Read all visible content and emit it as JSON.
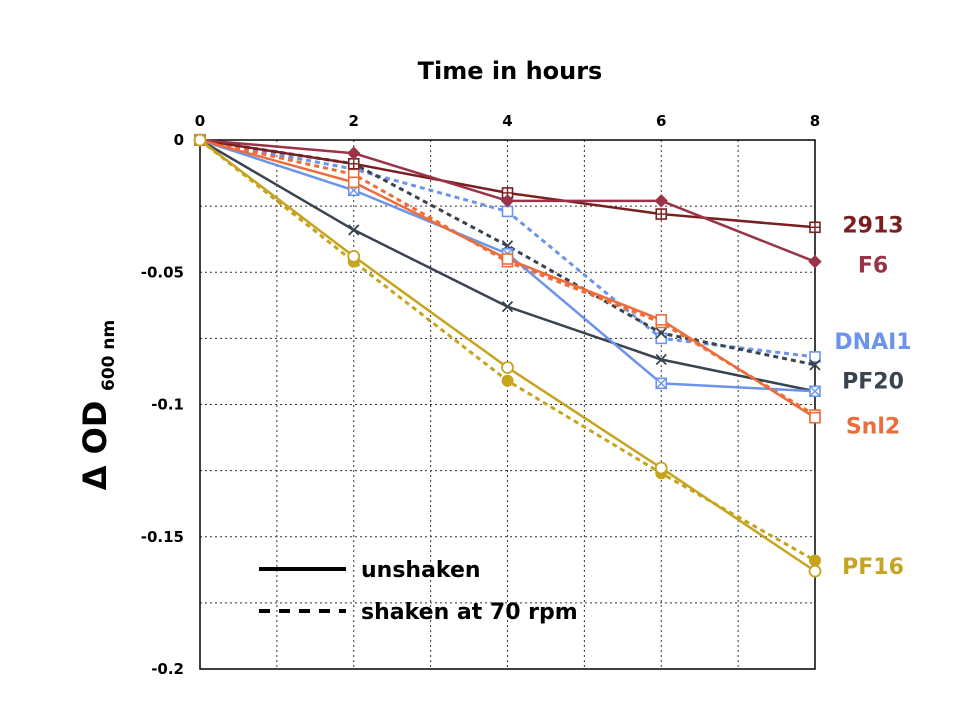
{
  "chart_data": {
    "type": "line",
    "title": "",
    "xlabel": "Time in hours",
    "ylabel_main": "Δ OD",
    "ylabel_sub": "600 nm",
    "x": [
      0,
      2,
      4,
      6,
      8
    ],
    "xlim": [
      0,
      8
    ],
    "ylim": [
      -0.2,
      0
    ],
    "x_ticks": [
      "0",
      "2",
      "4",
      "6",
      "8"
    ],
    "y_ticks": [
      {
        "value": 0,
        "label": "0"
      },
      {
        "value": -0.05,
        "label": "-0.05"
      },
      {
        "value": -0.1,
        "label": "-0.1"
      },
      {
        "value": -0.15,
        "label": "-0.15"
      },
      {
        "value": -0.2,
        "label": "-0.2"
      }
    ],
    "grid": true,
    "x_axis_position": "top",
    "legend": {
      "placement": "bottom-left",
      "entries": [
        {
          "label": "unshaken",
          "style": "solid"
        },
        {
          "label": "shaken at 70 rpm",
          "style": "dashed"
        }
      ]
    },
    "series": [
      {
        "name": "2913",
        "color": "#7a1f1f",
        "style": "solid",
        "marker": "square-plus",
        "values": [
          0,
          -0.009,
          -0.02,
          -0.028,
          -0.033
        ]
      },
      {
        "name": "F6",
        "color": "#9a3347",
        "style": "solid",
        "marker": "diamond",
        "values": [
          0,
          -0.005,
          -0.023,
          -0.023,
          -0.046
        ]
      },
      {
        "name": "",
        "color": "#3a4450",
        "style": "solid",
        "marker": "x",
        "values": [
          0,
          -0.034,
          -0.063,
          -0.083,
          -0.095
        ]
      },
      {
        "name": "",
        "color": "#6b94ea",
        "style": "solid",
        "marker": "square-x",
        "values": [
          0,
          -0.019,
          -0.043,
          -0.092,
          -0.095
        ]
      },
      {
        "name": "",
        "color": "#ee6c3a",
        "style": "solid",
        "marker": "square",
        "values": [
          0,
          -0.016,
          -0.045,
          -0.068,
          -0.105
        ]
      },
      {
        "name": "PF16",
        "color": "#c6a41f",
        "style": "solid",
        "marker": "circle",
        "values": [
          0,
          -0.044,
          -0.086,
          -0.124,
          -0.163
        ]
      },
      {
        "name": "DNAI1",
        "color": "#6b94ea",
        "style": "dashed",
        "marker": "square",
        "values": [
          0,
          -0.011,
          -0.027,
          -0.075,
          -0.082
        ]
      },
      {
        "name": "PF20",
        "color": "#3a4450",
        "style": "dashed",
        "marker": "x",
        "values": [
          0,
          -0.009,
          -0.04,
          -0.073,
          -0.085
        ]
      },
      {
        "name": "Snl2",
        "color": "#ee6c3a",
        "style": "dashed",
        "marker": "square",
        "values": [
          0,
          -0.013,
          -0.046,
          -0.069,
          -0.104
        ]
      },
      {
        "name": "",
        "color": "#c6a41f",
        "style": "dashed",
        "marker": "filled-circle",
        "values": [
          0,
          -0.046,
          -0.091,
          -0.126,
          -0.159
        ]
      }
    ],
    "end_labels": [
      {
        "label": "2913",
        "color": "#7a1f1f",
        "y": -0.032
      },
      {
        "label": "F6",
        "color": "#9a3347",
        "y": -0.047
      },
      {
        "label": "DNAI1",
        "color": "#6b94ea",
        "y": -0.076
      },
      {
        "label": "PF20",
        "color": "#3a4450",
        "y": -0.091
      },
      {
        "label": "Snl2",
        "color": "#ee6c3a",
        "y": -0.108
      },
      {
        "label": "PF16",
        "color": "#c6a41f",
        "y": -0.161
      }
    ]
  }
}
